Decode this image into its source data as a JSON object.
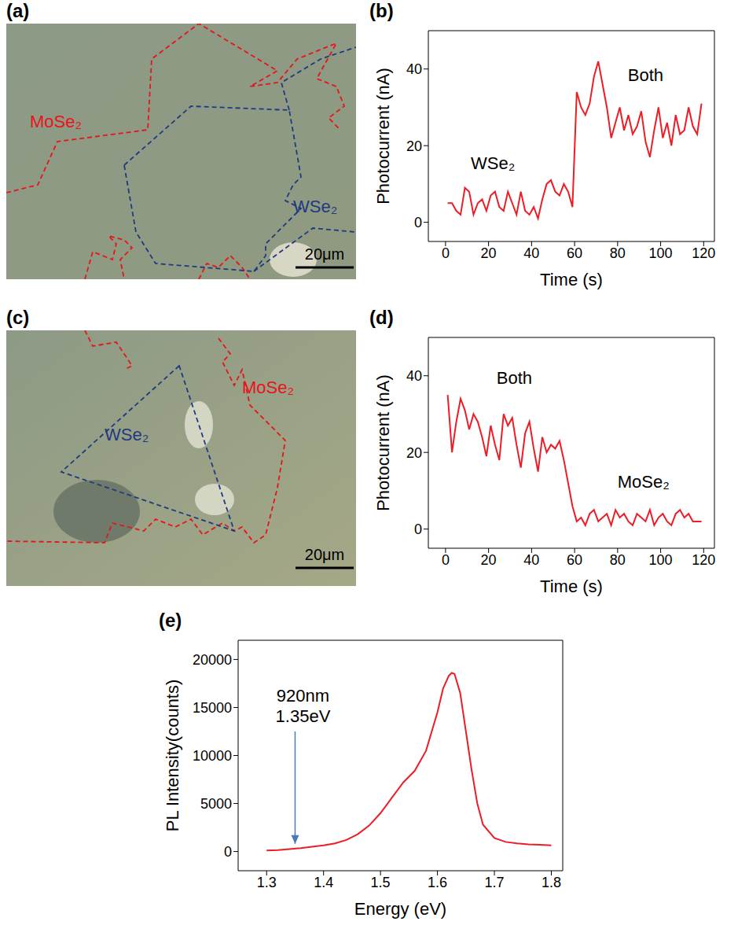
{
  "chart_data": [
    {
      "panel": "(a)",
      "type": "image",
      "labels": [
        {
          "text": "MoSe₂",
          "color": "#e8141c"
        },
        {
          "text": "WSe₂",
          "color": "#1f3a80"
        }
      ],
      "scale_bar": "20μm"
    },
    {
      "panel": "(b)",
      "type": "line",
      "color": "#ee1c25",
      "x_label": "Time (s)",
      "y_label": "Photocurrent (nA)",
      "xlim": [
        -8,
        125
      ],
      "xticks": [
        0,
        20,
        40,
        60,
        80,
        100,
        120
      ],
      "ylim": [
        -5,
        50
      ],
      "yticks": [
        0,
        20,
        40
      ],
      "x": [
        1,
        3,
        5,
        7,
        9,
        11,
        13,
        15,
        17,
        19,
        21,
        23,
        25,
        27,
        29,
        31,
        33,
        35,
        37,
        39,
        41,
        43,
        45,
        47,
        49,
        51,
        53,
        55,
        57,
        59,
        61,
        63,
        65,
        67,
        69,
        71,
        73,
        75,
        77,
        79,
        81,
        83,
        85,
        87,
        89,
        91,
        93,
        95,
        97,
        99,
        101,
        103,
        105,
        107,
        109,
        111,
        113,
        115,
        117,
        119
      ],
      "values": [
        5,
        5,
        3,
        2,
        9,
        8,
        2,
        5,
        6,
        3,
        7,
        8,
        4,
        3,
        8,
        5,
        2,
        8,
        3,
        2,
        4,
        1,
        6,
        10,
        11,
        8,
        7,
        10,
        8,
        4,
        34,
        30,
        28,
        31,
        38,
        42,
        36,
        30,
        22,
        26,
        30,
        24,
        28,
        23,
        25,
        29,
        21,
        17,
        24,
        30,
        22,
        26,
        20,
        28,
        23,
        24,
        30,
        25,
        23,
        31
      ],
      "annotations": [
        {
          "text": "WSe₂",
          "x": 22,
          "y": 15
        },
        {
          "text": "Both",
          "x": 93,
          "y": 38
        }
      ]
    },
    {
      "panel": "(c)",
      "type": "image",
      "labels": [
        {
          "text": "MoSe₂",
          "color": "#e8141c"
        },
        {
          "text": "WSe₂",
          "color": "#1f3a80"
        }
      ],
      "scale_bar": "20μm"
    },
    {
      "panel": "(d)",
      "type": "line",
      "color": "#ee1c25",
      "x_label": "Time (s)",
      "y_label": "Photocurrent (nA)",
      "xlim": [
        -8,
        125
      ],
      "xticks": [
        0,
        20,
        40,
        60,
        80,
        100,
        120
      ],
      "ylim": [
        -5,
        50
      ],
      "yticks": [
        0,
        20,
        40
      ],
      "x": [
        1,
        3,
        5,
        7,
        9,
        11,
        13,
        15,
        17,
        19,
        21,
        23,
        25,
        27,
        29,
        31,
        33,
        35,
        37,
        39,
        41,
        43,
        45,
        47,
        49,
        51,
        53,
        55,
        57,
        59,
        61,
        63,
        65,
        67,
        69,
        71,
        73,
        75,
        77,
        79,
        81,
        83,
        85,
        87,
        89,
        91,
        93,
        95,
        97,
        99,
        101,
        103,
        105,
        107,
        109,
        111,
        113,
        115,
        117,
        119
      ],
      "values": [
        35,
        20,
        28,
        34,
        31,
        26,
        30,
        28,
        24,
        19,
        27,
        22,
        18,
        30,
        27,
        29,
        22,
        16,
        25,
        28,
        21,
        15,
        24,
        20,
        22,
        21,
        23,
        18,
        12,
        6,
        2,
        3,
        1,
        4,
        5,
        2,
        3,
        4,
        1,
        5,
        3,
        4,
        2,
        1,
        4,
        3,
        2,
        5,
        1,
        3,
        4,
        2,
        1,
        4,
        5,
        3,
        4,
        2,
        2,
        2
      ],
      "annotations": [
        {
          "text": "Both",
          "x": 32,
          "y": 39
        },
        {
          "text": "MoSe₂",
          "x": 92,
          "y": 12
        }
      ]
    },
    {
      "panel": "(e)",
      "type": "line",
      "color": "#ee1c25",
      "x_label": "Energy (eV)",
      "y_label": "PL Intensity(counts)",
      "xlim": [
        1.25,
        1.82
      ],
      "xticks": [
        1.3,
        1.4,
        1.5,
        1.6,
        1.7,
        1.8
      ],
      "ylim": [
        -2000,
        22000
      ],
      "yticks": [
        0,
        5000,
        10000,
        15000,
        20000
      ],
      "x": [
        1.3,
        1.32,
        1.34,
        1.36,
        1.38,
        1.4,
        1.42,
        1.44,
        1.46,
        1.48,
        1.5,
        1.52,
        1.54,
        1.56,
        1.58,
        1.6,
        1.61,
        1.62,
        1.625,
        1.63,
        1.64,
        1.65,
        1.66,
        1.67,
        1.68,
        1.7,
        1.72,
        1.74,
        1.76,
        1.78,
        1.8
      ],
      "values": [
        100,
        150,
        250,
        350,
        500,
        650,
        850,
        1200,
        1800,
        2700,
        4000,
        5600,
        7200,
        8400,
        10500,
        14500,
        17000,
        18300,
        18600,
        18500,
        16500,
        12500,
        8500,
        5000,
        2800,
        1400,
        1000,
        850,
        750,
        700,
        650
      ],
      "arrow": {
        "text": [
          "920nm",
          "1.35eV"
        ],
        "x": 1.35,
        "y_from": 12500,
        "y_to": 800
      }
    }
  ]
}
